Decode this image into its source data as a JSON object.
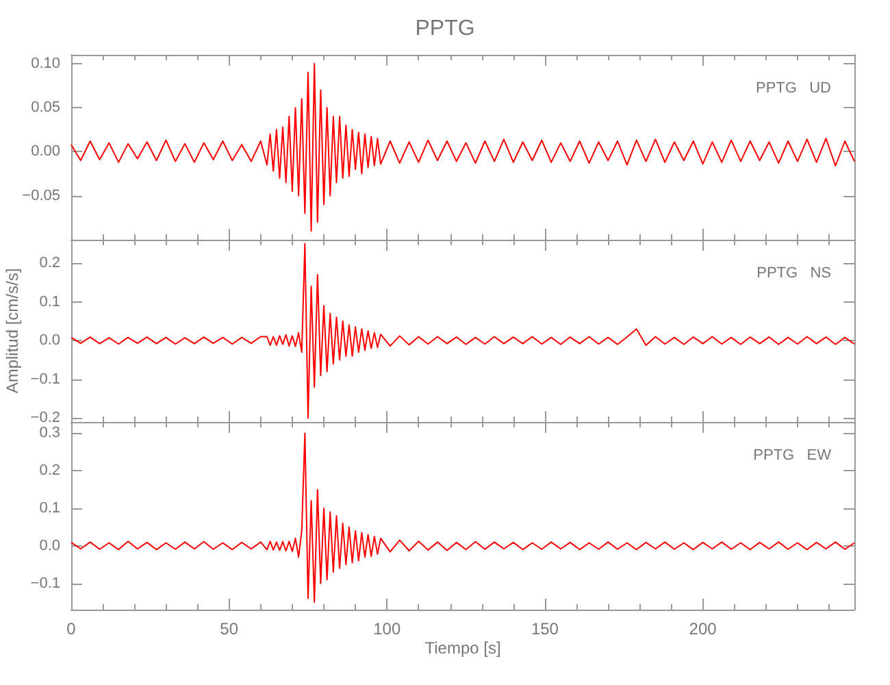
{
  "chart_data": [
    {
      "type": "line",
      "title": "PPTG",
      "annotations": [
        "PPTG   UD"
      ],
      "tick_labels": "y",
      "grid": false,
      "marker": "none",
      "xlim": [
        0,
        248
      ],
      "xticks": [
        0,
        50,
        100,
        150,
        200
      ],
      "ylim": [
        -0.1,
        0.11
      ],
      "yticks": [
        {
          "value": 0.1,
          "label": "0.10"
        },
        {
          "value": 0.05,
          "label": "0.05"
        },
        {
          "value": 0,
          "label": "0.00"
        },
        {
          "value": -0.05,
          "label": "−0.05"
        }
      ],
      "x": [
        0,
        3,
        6,
        9,
        12,
        15,
        18,
        21,
        24,
        27,
        30,
        33,
        36,
        39,
        42,
        45,
        48,
        51,
        54,
        57,
        60,
        62,
        63,
        64,
        65,
        66,
        67,
        68,
        69,
        70,
        71,
        72,
        73,
        74,
        75,
        76,
        77,
        78,
        79,
        80,
        81,
        82,
        83,
        84,
        85,
        86,
        87,
        88,
        89,
        90,
        91,
        92,
        93,
        94,
        95,
        96,
        97,
        98,
        101,
        104,
        107,
        110,
        113,
        116,
        119,
        122,
        125,
        128,
        131,
        134,
        137,
        140,
        143,
        146,
        149,
        152,
        155,
        158,
        161,
        164,
        167,
        170,
        173,
        176,
        179,
        182,
        185,
        188,
        191,
        194,
        197,
        200,
        203,
        206,
        209,
        212,
        215,
        218,
        221,
        224,
        227,
        230,
        233,
        236,
        239,
        242,
        245,
        248
      ],
      "series": [
        {
          "color": "#ff0000",
          "values": [
            0.008,
            -0.01,
            0.012,
            -0.009,
            0.01,
            -0.012,
            0.009,
            -0.008,
            0.011,
            -0.01,
            0.013,
            -0.011,
            0.009,
            -0.012,
            0.01,
            -0.009,
            0.012,
            -0.01,
            0.008,
            -0.011,
            0.012,
            -0.015,
            0.02,
            -0.022,
            0.025,
            -0.03,
            0.028,
            -0.035,
            0.04,
            -0.045,
            0.05,
            -0.05,
            0.06,
            -0.07,
            0.09,
            -0.09,
            0.1,
            -0.08,
            0.07,
            -0.06,
            0.05,
            -0.05,
            0.04,
            -0.035,
            0.04,
            -0.03,
            0.03,
            -0.028,
            0.025,
            -0.02,
            0.022,
            -0.025,
            0.02,
            -0.018,
            0.017,
            -0.016,
            0.015,
            -0.014,
            0.012,
            -0.013,
            0.011,
            -0.012,
            0.013,
            -0.01,
            0.012,
            -0.011,
            0.01,
            -0.013,
            0.012,
            -0.011,
            0.014,
            -0.012,
            0.011,
            -0.01,
            0.013,
            -0.012,
            0.01,
            -0.011,
            0.012,
            -0.013,
            0.011,
            -0.01,
            0.012,
            -0.015,
            0.013,
            -0.011,
            0.014,
            -0.012,
            0.011,
            -0.01,
            0.012,
            -0.014,
            0.011,
            -0.012,
            0.013,
            -0.011,
            0.012,
            -0.01,
            0.011,
            -0.013,
            0.012,
            -0.011,
            0.014,
            -0.012,
            0.015,
            -0.016,
            0.012,
            -0.011
          ]
        }
      ]
    },
    {
      "type": "line",
      "ylabel": "Amplitud [cm/s/s]",
      "annotations": [
        "PPTG   NS"
      ],
      "tick_labels": "y",
      "grid": false,
      "marker": "none",
      "xlim": [
        0,
        248
      ],
      "xticks": [
        0,
        50,
        100,
        150,
        200
      ],
      "ylim": [
        -0.21,
        0.26
      ],
      "yticks": [
        {
          "value": 0.2,
          "label": "0.2"
        },
        {
          "value": 0.1,
          "label": "0.1"
        },
        {
          "value": 0,
          "label": "0.0"
        },
        {
          "value": -0.1,
          "label": "−0.1"
        },
        {
          "value": -0.2,
          "label": "−0.2"
        }
      ],
      "x": [
        0,
        3,
        6,
        9,
        12,
        15,
        18,
        21,
        24,
        27,
        30,
        33,
        36,
        39,
        42,
        45,
        48,
        51,
        54,
        57,
        60,
        62,
        63,
        64,
        65,
        66,
        67,
        68,
        69,
        70,
        71,
        72,
        73,
        74,
        75,
        76,
        77,
        78,
        79,
        80,
        81,
        82,
        83,
        84,
        85,
        86,
        87,
        88,
        89,
        90,
        91,
        92,
        93,
        94,
        95,
        96,
        97,
        98,
        101,
        104,
        107,
        110,
        113,
        116,
        119,
        122,
        125,
        128,
        131,
        134,
        137,
        140,
        143,
        146,
        149,
        152,
        155,
        158,
        161,
        164,
        167,
        170,
        173,
        176,
        179,
        182,
        185,
        188,
        191,
        194,
        197,
        200,
        203,
        206,
        209,
        212,
        215,
        218,
        221,
        224,
        227,
        230,
        233,
        236,
        239,
        242,
        245,
        248
      ],
      "series": [
        {
          "color": "#ff0000",
          "values": [
            0.008,
            -0.007,
            0.009,
            -0.008,
            0.007,
            -0.009,
            0.008,
            -0.007,
            0.009,
            -0.008,
            0.008,
            -0.009,
            0.007,
            -0.008,
            0.009,
            -0.007,
            0.008,
            -0.009,
            0.008,
            -0.007,
            0.01,
            0.01,
            -0.012,
            0.01,
            -0.012,
            0.012,
            -0.01,
            0.015,
            -0.014,
            0.012,
            -0.015,
            0.02,
            -0.03,
            0.25,
            -0.2,
            0.14,
            -0.12,
            0.17,
            -0.09,
            0.09,
            -0.08,
            0.07,
            -0.06,
            0.06,
            -0.05,
            0.05,
            -0.04,
            0.04,
            -0.04,
            0.035,
            -0.03,
            0.03,
            -0.025,
            0.025,
            -0.02,
            0.02,
            -0.018,
            0.016,
            -0.014,
            0.012,
            -0.011,
            0.01,
            -0.009,
            0.01,
            -0.008,
            0.009,
            -0.01,
            0.008,
            -0.009,
            0.01,
            -0.008,
            0.009,
            -0.008,
            0.01,
            -0.009,
            0.008,
            -0.01,
            0.009,
            -0.008,
            0.01,
            -0.009,
            0.008,
            -0.01,
            0.009,
            0.03,
            -0.012,
            0.01,
            -0.009,
            0.008,
            -0.01,
            0.009,
            -0.008,
            0.01,
            -0.009,
            0.008,
            -0.01,
            0.009,
            -0.008,
            0.009,
            -0.01,
            0.008,
            -0.009,
            0.01,
            -0.008,
            0.009,
            -0.01,
            0.008,
            -0.009
          ]
        }
      ]
    },
    {
      "type": "line",
      "xlabel": "Tiempo [s]",
      "annotations": [
        "PPTG   EW"
      ],
      "grid": false,
      "marker": "none",
      "xlim": [
        0,
        248
      ],
      "xticks": [
        0,
        50,
        100,
        150,
        200
      ],
      "ylim": [
        -0.17,
        0.33
      ],
      "yticks": [
        {
          "value": 0.3,
          "label": "0.3"
        },
        {
          "value": 0.2,
          "label": "0.2"
        },
        {
          "value": 0.1,
          "label": "0.1"
        },
        {
          "value": 0,
          "label": "0.0"
        },
        {
          "value": -0.1,
          "label": "−0.1"
        }
      ],
      "x": [
        0,
        3,
        6,
        9,
        12,
        15,
        18,
        21,
        24,
        27,
        30,
        33,
        36,
        39,
        42,
        45,
        48,
        51,
        54,
        57,
        60,
        62,
        63,
        64,
        65,
        66,
        67,
        68,
        69,
        70,
        71,
        72,
        73,
        74,
        75,
        76,
        77,
        78,
        79,
        80,
        81,
        82,
        83,
        84,
        85,
        86,
        87,
        88,
        89,
        90,
        91,
        92,
        93,
        94,
        95,
        96,
        97,
        98,
        101,
        104,
        107,
        110,
        113,
        116,
        119,
        122,
        125,
        128,
        131,
        134,
        137,
        140,
        143,
        146,
        149,
        152,
        155,
        158,
        161,
        164,
        167,
        170,
        173,
        176,
        179,
        182,
        185,
        188,
        191,
        194,
        197,
        200,
        203,
        206,
        209,
        212,
        215,
        218,
        221,
        224,
        227,
        230,
        233,
        236,
        239,
        242,
        245,
        248
      ],
      "series": [
        {
          "color": "#ff0000",
          "values": [
            0.009,
            -0.008,
            0.01,
            -0.009,
            0.008,
            -0.01,
            0.012,
            -0.008,
            0.009,
            -0.01,
            0.008,
            -0.009,
            0.01,
            -0.008,
            0.011,
            -0.009,
            0.008,
            -0.01,
            0.009,
            -0.008,
            0.01,
            -0.01,
            0.012,
            -0.011,
            0.01,
            -0.012,
            0.011,
            -0.013,
            0.012,
            -0.015,
            0.02,
            -0.03,
            0.04,
            0.3,
            -0.14,
            0.12,
            -0.15,
            0.15,
            -0.1,
            0.1,
            -0.09,
            0.09,
            -0.07,
            0.08,
            -0.06,
            0.06,
            -0.05,
            0.05,
            -0.045,
            0.04,
            -0.04,
            0.035,
            -0.03,
            0.03,
            -0.028,
            0.025,
            -0.022,
            0.02,
            -0.016,
            0.015,
            -0.013,
            0.012,
            -0.011,
            0.01,
            -0.012,
            0.009,
            -0.01,
            0.011,
            -0.009,
            0.01,
            -0.008,
            0.009,
            -0.01,
            0.008,
            -0.009,
            0.01,
            -0.008,
            0.009,
            -0.01,
            0.008,
            -0.009,
            0.01,
            -0.009,
            0.008,
            -0.01,
            0.009,
            -0.008,
            0.01,
            -0.009,
            0.008,
            -0.01,
            0.009,
            -0.008,
            0.01,
            -0.009,
            0.008,
            -0.01,
            0.009,
            -0.008,
            0.01,
            -0.009,
            0.008,
            -0.01,
            0.009,
            -0.008,
            0.01,
            -0.009,
            0.008
          ]
        }
      ]
    }
  ]
}
